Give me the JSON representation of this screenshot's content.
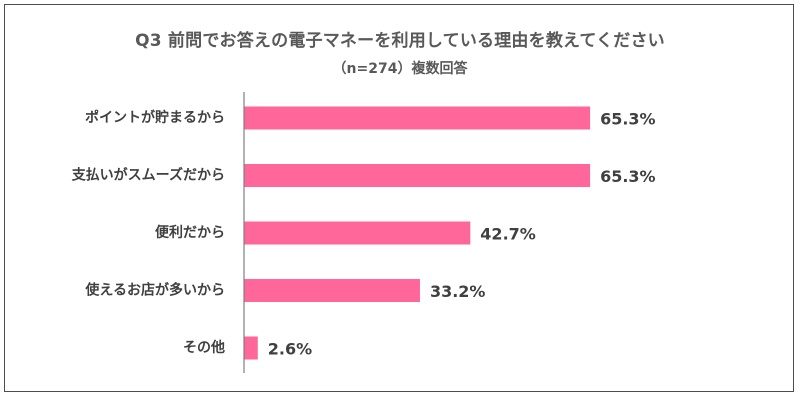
{
  "title": "Q3 前問でお答えの電子マネーを利用している理由を教えてください",
  "subtitle": "（n=274）複数回答",
  "colors": {
    "bar": "#ff6699",
    "axis": "#7f7f7f",
    "text": "#404040"
  },
  "chart_data": {
    "type": "bar",
    "orientation": "horizontal",
    "categories": [
      "ポイントが貯まるから",
      "支払いがスムーズだから",
      "便利だから",
      "使えるお店が多いから",
      "その他"
    ],
    "values": [
      65.3,
      65.3,
      42.7,
      33.2,
      2.6
    ],
    "value_labels": [
      "65.3%",
      "65.3%",
      "42.7%",
      "33.2%",
      "2.6%"
    ],
    "unit": "%",
    "xlim": [
      0,
      100
    ],
    "grid": false,
    "legend": "none"
  }
}
